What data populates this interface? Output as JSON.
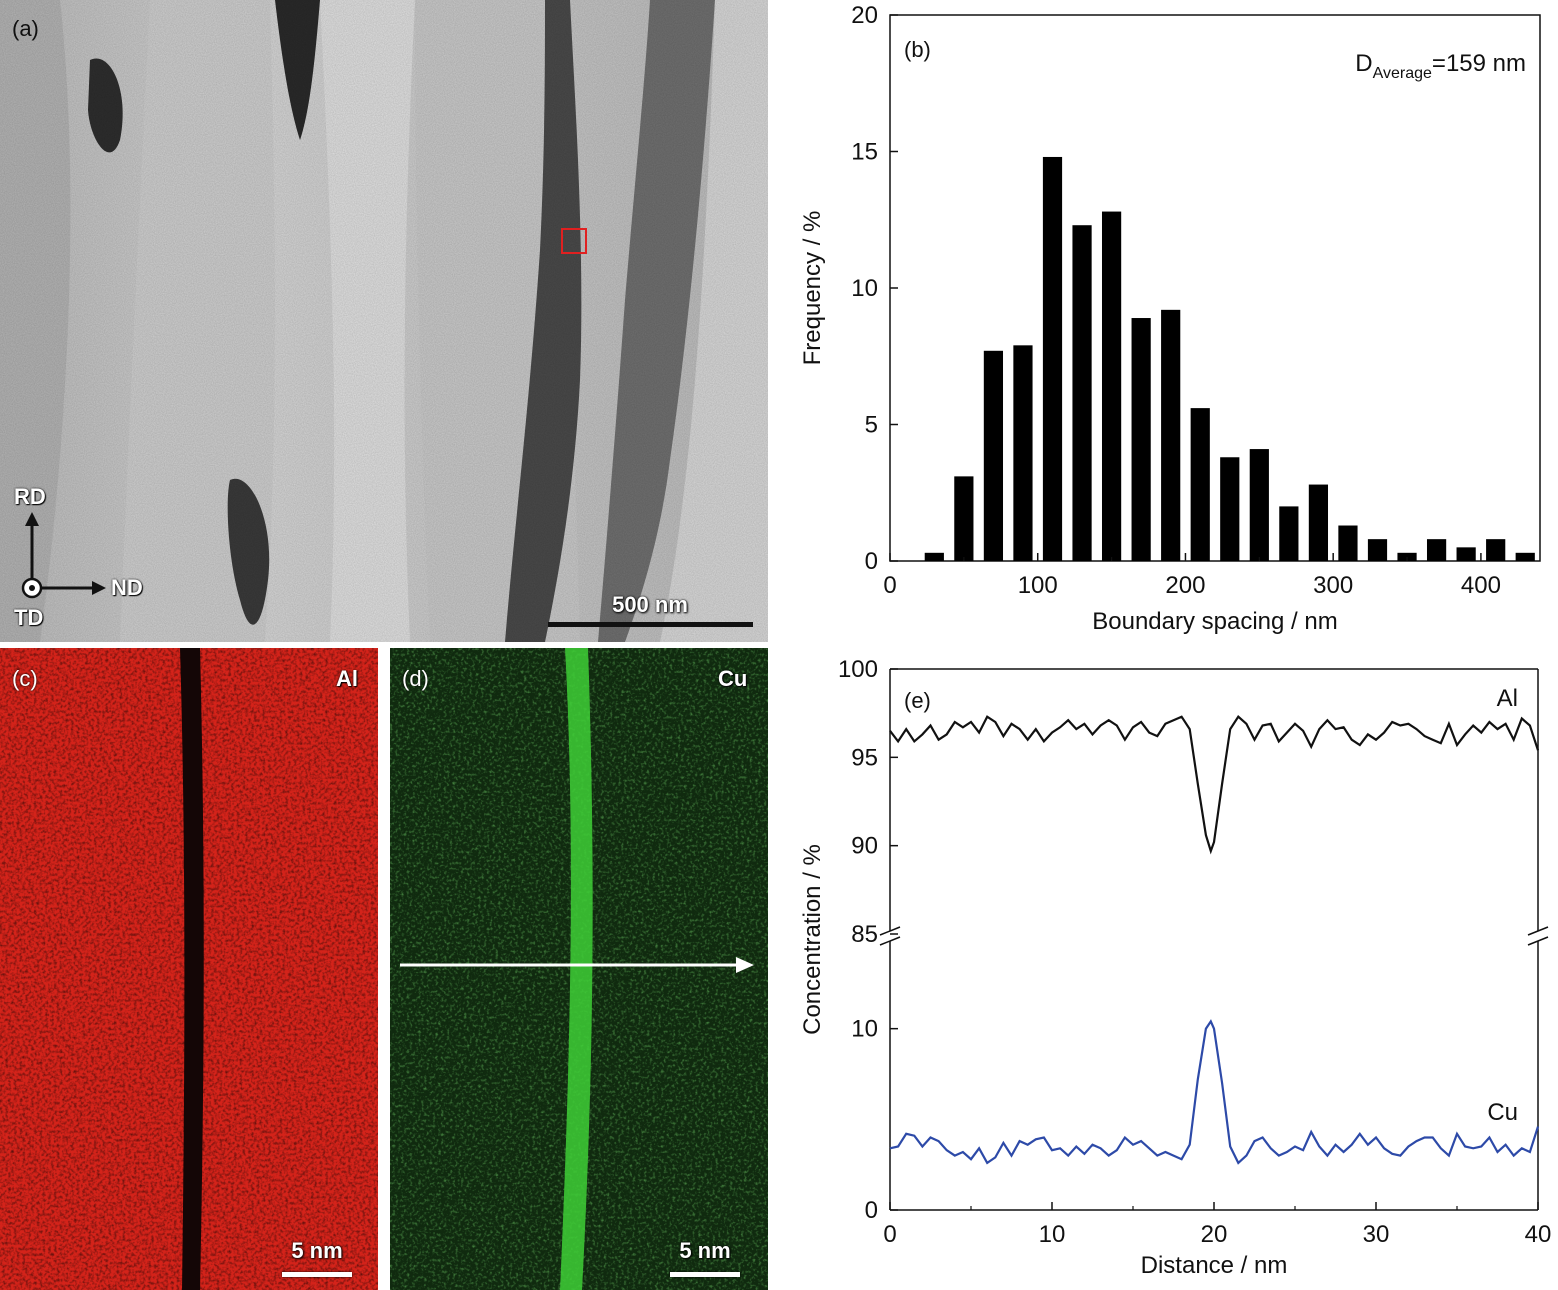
{
  "panel_a": {
    "label": "(a)",
    "scale_bar": "500 nm",
    "axes": {
      "up": "RD",
      "right": "ND",
      "center": "TD"
    }
  },
  "panel_c": {
    "label": "(c)",
    "element": "Al",
    "scale_bar": "5 nm",
    "color": "#d4231a"
  },
  "panel_d": {
    "label": "(d)",
    "element": "Cu",
    "scale_bar": "5 nm",
    "color": "#2fbf2a"
  },
  "chart_data": [
    {
      "panel": "(b)",
      "type": "bar",
      "annotation_main": "D",
      "annotation_sub": "Average",
      "annotation_tail": "=159 nm",
      "xlabel": "Boundary spacing / nm",
      "ylabel": "Frequency / %",
      "xlim": [
        0,
        440
      ],
      "ylim": [
        0,
        20
      ],
      "xticks": [
        0,
        100,
        200,
        300,
        400
      ],
      "yticks": [
        0,
        5,
        10,
        15,
        20
      ],
      "bar_width": 13,
      "x": [
        30,
        50,
        70,
        90,
        110,
        130,
        150,
        170,
        190,
        210,
        230,
        250,
        270,
        290,
        310,
        330,
        350,
        370,
        390,
        410,
        430
      ],
      "values": [
        0.3,
        3.1,
        7.7,
        7.9,
        14.8,
        12.3,
        12.8,
        8.9,
        9.2,
        5.6,
        3.8,
        4.1,
        2.0,
        2.8,
        1.3,
        0.8,
        0.3,
        0.8,
        0.5,
        0.8,
        0.3
      ],
      "color": "#000000"
    },
    {
      "panel": "(e)",
      "type": "line",
      "xlabel": "Distance / nm",
      "ylabel": "Concentration / %",
      "xlim": [
        0,
        40
      ],
      "xticks": [
        0,
        10,
        20,
        30,
        40
      ],
      "upper_ylim": [
        85,
        100
      ],
      "upper_yticks": [
        85,
        90,
        95,
        100
      ],
      "lower_ylim": [
        0,
        15
      ],
      "lower_yticks": [
        0,
        10
      ],
      "series": [
        {
          "name": "Al",
          "color": "#111111",
          "axis": "upper",
          "points": [
            [
              0,
              96.5
            ],
            [
              0.5,
              95.9
            ],
            [
              1,
              96.6
            ],
            [
              1.5,
              95.9
            ],
            [
              2,
              96.3
            ],
            [
              2.5,
              96.8
            ],
            [
              3,
              96.0
            ],
            [
              3.5,
              96.3
            ],
            [
              4,
              97.0
            ],
            [
              4.5,
              96.7
            ],
            [
              5,
              97.0
            ],
            [
              5.5,
              96.4
            ],
            [
              6,
              97.3
            ],
            [
              6.5,
              97.0
            ],
            [
              7,
              96.2
            ],
            [
              7.5,
              96.9
            ],
            [
              8,
              96.6
            ],
            [
              8.5,
              96.0
            ],
            [
              9,
              96.6
            ],
            [
              9.5,
              95.9
            ],
            [
              10,
              96.4
            ],
            [
              10.5,
              96.7
            ],
            [
              11,
              97.1
            ],
            [
              11.5,
              96.6
            ],
            [
              12,
              96.9
            ],
            [
              12.5,
              96.3
            ],
            [
              13,
              96.8
            ],
            [
              13.5,
              97.1
            ],
            [
              14,
              96.8
            ],
            [
              14.5,
              96.0
            ],
            [
              15,
              96.7
            ],
            [
              15.5,
              97.0
            ],
            [
              16,
              96.4
            ],
            [
              16.5,
              96.2
            ],
            [
              17,
              96.9
            ],
            [
              17.5,
              97.1
            ],
            [
              18,
              97.3
            ],
            [
              18.5,
              96.6
            ],
            [
              19,
              93.5
            ],
            [
              19.5,
              90.6
            ],
            [
              19.8,
              89.7
            ],
            [
              20,
              90.2
            ],
            [
              20.5,
              93.5
            ],
            [
              21,
              96.6
            ],
            [
              21.5,
              97.3
            ],
            [
              22,
              96.9
            ],
            [
              22.5,
              96.0
            ],
            [
              23,
              96.8
            ],
            [
              23.5,
              96.9
            ],
            [
              24,
              95.9
            ],
            [
              24.5,
              96.4
            ],
            [
              25,
              96.9
            ],
            [
              25.5,
              96.5
            ],
            [
              26,
              95.6
            ],
            [
              26.5,
              96.6
            ],
            [
              27,
              97.1
            ],
            [
              27.5,
              96.6
            ],
            [
              28,
              96.7
            ],
            [
              28.5,
              96.0
            ],
            [
              29,
              95.7
            ],
            [
              29.5,
              96.3
            ],
            [
              30,
              96.0
            ],
            [
              30.5,
              96.4
            ],
            [
              31,
              97.0
            ],
            [
              31.5,
              96.8
            ],
            [
              32,
              96.9
            ],
            [
              32.5,
              96.6
            ],
            [
              33,
              96.2
            ],
            [
              33.5,
              96.0
            ],
            [
              34,
              95.8
            ],
            [
              34.5,
              96.9
            ],
            [
              35,
              95.7
            ],
            [
              35.5,
              96.3
            ],
            [
              36,
              96.8
            ],
            [
              36.5,
              96.4
            ],
            [
              37,
              97.0
            ],
            [
              37.5,
              96.6
            ],
            [
              38,
              96.9
            ],
            [
              38.5,
              96.0
            ],
            [
              39,
              97.2
            ],
            [
              39.5,
              96.8
            ],
            [
              40,
              95.4
            ]
          ]
        },
        {
          "name": "Cu",
          "color": "#2d4aa8",
          "axis": "lower",
          "points": [
            [
              0,
              3.4
            ],
            [
              0.5,
              3.5
            ],
            [
              1,
              4.2
            ],
            [
              1.5,
              4.1
            ],
            [
              2,
              3.5
            ],
            [
              2.5,
              4.0
            ],
            [
              3,
              3.8
            ],
            [
              3.5,
              3.3
            ],
            [
              4,
              3.0
            ],
            [
              4.5,
              3.2
            ],
            [
              5,
              2.8
            ],
            [
              5.5,
              3.4
            ],
            [
              6,
              2.6
            ],
            [
              6.5,
              2.9
            ],
            [
              7,
              3.7
            ],
            [
              7.5,
              3.0
            ],
            [
              8,
              3.8
            ],
            [
              8.5,
              3.6
            ],
            [
              9,
              3.9
            ],
            [
              9.5,
              4.0
            ],
            [
              10,
              3.3
            ],
            [
              10.5,
              3.4
            ],
            [
              11,
              3.0
            ],
            [
              11.5,
              3.5
            ],
            [
              12,
              3.1
            ],
            [
              12.5,
              3.6
            ],
            [
              13,
              3.4
            ],
            [
              13.5,
              3.0
            ],
            [
              14,
              3.3
            ],
            [
              14.5,
              4.0
            ],
            [
              15,
              3.6
            ],
            [
              15.5,
              3.8
            ],
            [
              16,
              3.4
            ],
            [
              16.5,
              3.0
            ],
            [
              17,
              3.2
            ],
            [
              17.5,
              3.0
            ],
            [
              18,
              2.8
            ],
            [
              18.5,
              3.6
            ],
            [
              19,
              7.2
            ],
            [
              19.5,
              10.0
            ],
            [
              19.8,
              10.4
            ],
            [
              20,
              10.0
            ],
            [
              20.5,
              7.0
            ],
            [
              21,
              3.5
            ],
            [
              21.5,
              2.6
            ],
            [
              22,
              3.0
            ],
            [
              22.5,
              3.8
            ],
            [
              23,
              4.0
            ],
            [
              23.5,
              3.4
            ],
            [
              24,
              3.0
            ],
            [
              24.5,
              3.2
            ],
            [
              25,
              3.5
            ],
            [
              25.5,
              3.3
            ],
            [
              26,
              4.3
            ],
            [
              26.5,
              3.5
            ],
            [
              27,
              3.0
            ],
            [
              27.5,
              3.6
            ],
            [
              28,
              3.2
            ],
            [
              28.5,
              3.6
            ],
            [
              29,
              4.2
            ],
            [
              29.5,
              3.6
            ],
            [
              30,
              4.0
            ],
            [
              30.5,
              3.4
            ],
            [
              31,
              3.1
            ],
            [
              31.5,
              3.0
            ],
            [
              32,
              3.5
            ],
            [
              32.5,
              3.8
            ],
            [
              33,
              4.0
            ],
            [
              33.5,
              4.0
            ],
            [
              34,
              3.4
            ],
            [
              34.5,
              3.0
            ],
            [
              35,
              4.2
            ],
            [
              35.5,
              3.5
            ],
            [
              36,
              3.4
            ],
            [
              36.5,
              3.5
            ],
            [
              37,
              4.0
            ],
            [
              37.5,
              3.2
            ],
            [
              38,
              3.6
            ],
            [
              38.5,
              3.0
            ],
            [
              39,
              3.4
            ],
            [
              39.5,
              3.2
            ],
            [
              40,
              4.6
            ]
          ]
        }
      ],
      "label": "(e)"
    }
  ]
}
